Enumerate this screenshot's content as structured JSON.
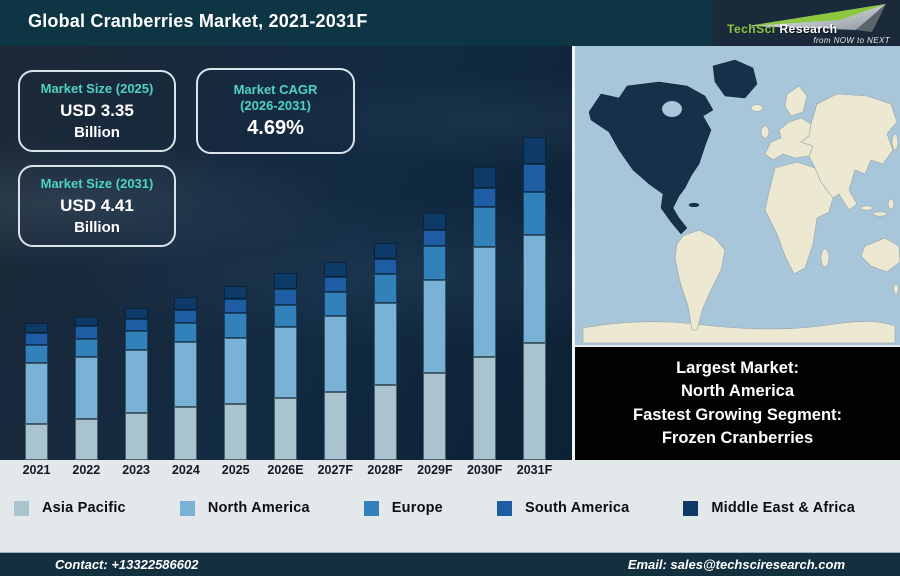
{
  "header": {
    "title": "Global Cranberries Market, 2021-2031F",
    "logo": {
      "brand1": "TechSci",
      "brand2": "Research",
      "tagline": "from NOW to NEXT"
    }
  },
  "info_boxes": [
    {
      "label": "Market Size (2025)",
      "value": "USD 3.35",
      "unit": "Billion"
    },
    {
      "label": "Market CAGR (2026-2031)",
      "value": "4.69%"
    },
    {
      "label": "Market Size (2031)",
      "value": "USD 4.41",
      "unit": "Billion"
    }
  ],
  "chart_data": {
    "type": "bar",
    "stacked": true,
    "title": "Global Cranberries Market, 2021-2031F",
    "categories": [
      "2021",
      "2022",
      "2023",
      "2024",
      "2025",
      "2026E",
      "2027F",
      "2028F",
      "2029F",
      "2030F",
      "2031F"
    ],
    "series": [
      {
        "name": "Asia Pacific",
        "color": "#a9c4cf",
        "values": [
          36,
          41,
          47,
          53,
          56,
          62,
          68,
          75,
          87,
          103,
          117
        ]
      },
      {
        "name": "North America",
        "color": "#79b2d5",
        "values": [
          61,
          62,
          63,
          65,
          66,
          71,
          76,
          82,
          93,
          110,
          108
        ]
      },
      {
        "name": "Europe",
        "color": "#3381bb",
        "values": [
          18,
          18,
          19,
          19,
          25,
          22,
          24,
          29,
          34,
          40,
          43
        ]
      },
      {
        "name": "South America",
        "color": "#1e5ca3",
        "values": [
          12,
          13,
          12,
          13,
          14,
          16,
          15,
          15,
          16,
          19,
          28
        ]
      },
      {
        "name": "Middle East & Africa",
        "color": "#0d3a66",
        "values": [
          10,
          9,
          11,
          13,
          13,
          16,
          15,
          16,
          17,
          21,
          27
        ]
      }
    ],
    "units": "relative stacked height (no value axis shown; illustrative)",
    "known_totals": {
      "2025": "USD 3.35 Billion",
      "2031": "USD 4.41 Billion",
      "cagr_2026_2031": "4.69%"
    },
    "xlabel": "",
    "ylabel": "",
    "grid": false,
    "legend_position": "bottom"
  },
  "map_panel": {
    "highlighted_region": "North America",
    "callout": {
      "lines": [
        "Largest Market:",
        "North America",
        "Fastest Growing Segment:",
        "Frozen Cranberries"
      ]
    }
  },
  "footer": {
    "contact": "Contact: +13322586602",
    "email": "Email: sales@techsciresearch.com"
  },
  "colors": {
    "header-bg": "#0d3544",
    "logo-bg": "#1b2a3a",
    "accent-teal": "#4ed3c2",
    "band-bg": "#e3e8ea",
    "footer-bg": "#14303e",
    "callout-bg": "#020202",
    "map-ocean": "#a7c6da",
    "map-land": "#ece8d2",
    "map-highlight": "#16304a",
    "logo-green": "#8dc63f"
  }
}
